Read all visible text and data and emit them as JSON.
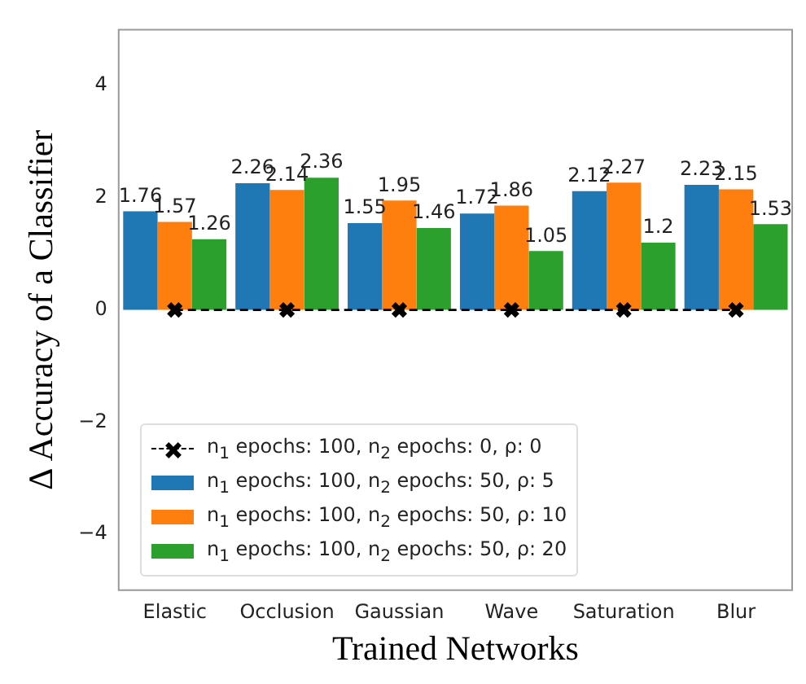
{
  "chart_data": {
    "type": "bar",
    "xlabel": "Trained Networks",
    "ylabel": "Δ Accuracy of a Classifier",
    "categories": [
      "Elastic",
      "Occlusion",
      "Gaussian",
      "Wave",
      "Saturation",
      "Blur"
    ],
    "series": [
      {
        "name": "n$_{1}$ epochs: 100, n$_{2}$ epochs: 0, ρ: 0",
        "type": "line",
        "color": "#000000",
        "marker": "cross",
        "line_style": "dashed",
        "values": [
          0,
          0,
          0,
          0,
          0,
          0
        ]
      },
      {
        "name": "n$_{1}$ epochs: 100, n$_{2}$ epochs: 50, ρ: 5",
        "color": "#1f77b4",
        "values": [
          1.76,
          2.26,
          1.55,
          1.72,
          2.12,
          2.23
        ],
        "value_labels": [
          "1.76",
          "2.26",
          "1.55",
          "1.72",
          "2.12",
          "2.23"
        ]
      },
      {
        "name": "n$_{1}$ epochs: 100, n$_{2}$ epochs: 50, ρ: 10",
        "color": "#ff7f0e",
        "values": [
          1.57,
          2.14,
          1.95,
          1.86,
          2.27,
          2.15
        ],
        "value_labels": [
          "1.57",
          "2.14",
          "1.95",
          "1.86",
          "2.27",
          "2.15"
        ]
      },
      {
        "name": "n$_{1}$ epochs: 100, n$_{2}$ epochs: 50, ρ: 20",
        "color": "#2ca02c",
        "values": [
          1.26,
          2.36,
          1.46,
          1.05,
          1.2,
          1.53
        ],
        "value_labels": [
          "1.26",
          "2.36",
          "1.46",
          "1.05",
          "1.2",
          "1.53"
        ]
      }
    ],
    "ylim": [
      -5,
      5
    ],
    "yticks": [
      -4,
      -2,
      0,
      2,
      4
    ],
    "grid": false,
    "legend": "bottom left"
  }
}
